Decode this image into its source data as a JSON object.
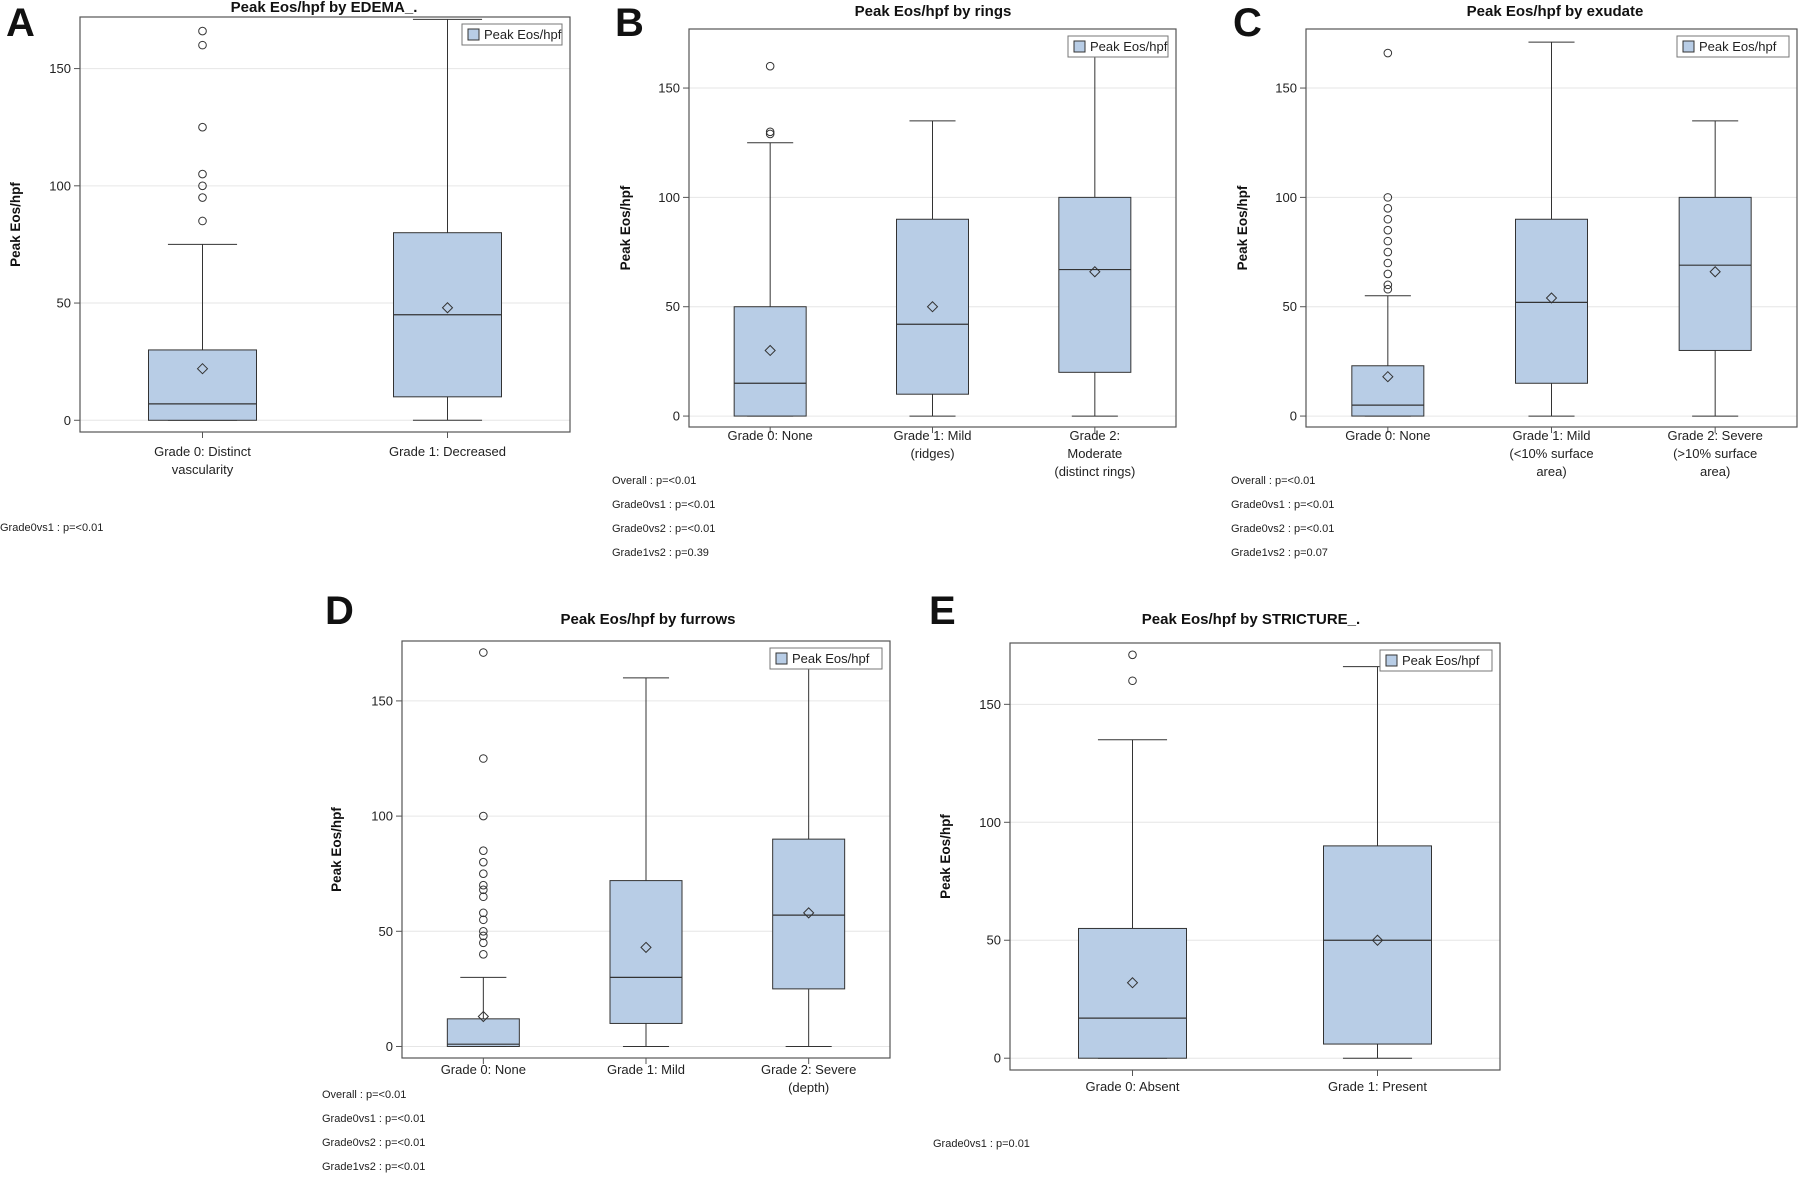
{
  "colors": {
    "box_fill": "#b8cde6",
    "box_stroke": "#333333",
    "grid": "#e6e6e6",
    "frame": "#555555"
  },
  "chart_data": [
    {
      "panel": "A",
      "type": "box",
      "title": "Peak Eos/hpf by EDEMA_.",
      "ylabel": "Peak Eos/hpf",
      "ylim": [
        -5,
        172
      ],
      "yticks": [
        0,
        50,
        100,
        150
      ],
      "grid": true,
      "legend": {
        "label": "Peak Eos/hpf",
        "placement": "top-right"
      },
      "categories": [
        [
          "Grade 0: Distinct",
          "vascularity"
        ],
        [
          "Grade 1: Decreased"
        ]
      ],
      "boxes": [
        {
          "q1": 0,
          "median": 7,
          "q3": 30,
          "mean": 22,
          "whisker_low": 0,
          "whisker_high": 75,
          "outliers": [
            85,
            95,
            100,
            105,
            125,
            160,
            166
          ]
        },
        {
          "q1": 10,
          "median": 45,
          "q3": 80,
          "mean": 48,
          "whisker_low": 0,
          "whisker_high": 171,
          "outliers": []
        }
      ],
      "pvalues": [
        "Grade0vs1 : p=<0.01"
      ]
    },
    {
      "panel": "B",
      "type": "box",
      "title": "Peak Eos/hpf by rings",
      "ylabel": "Peak Eos/hpf",
      "ylim": [
        -5,
        177
      ],
      "yticks": [
        0,
        50,
        100,
        150
      ],
      "grid": true,
      "legend": {
        "label": "Peak Eos/hpf",
        "placement": "top-right"
      },
      "categories": [
        [
          "Grade 0: None"
        ],
        [
          "Grade 1: Mild",
          "(ridges)"
        ],
        [
          "Grade 2:",
          "Moderate",
          "(distinct rings)"
        ]
      ],
      "boxes": [
        {
          "q1": 0,
          "median": 15,
          "q3": 50,
          "mean": 30,
          "whisker_low": 0,
          "whisker_high": 125,
          "outliers": [
            129,
            130,
            160
          ]
        },
        {
          "q1": 10,
          "median": 42,
          "q3": 90,
          "mean": 50,
          "whisker_low": 0,
          "whisker_high": 135,
          "outliers": []
        },
        {
          "q1": 20,
          "median": 67,
          "q3": 100,
          "mean": 66,
          "whisker_low": 0,
          "whisker_high": 171,
          "outliers": []
        }
      ],
      "pvalues": [
        "Overall : p=<0.01",
        "Grade0vs1 : p=<0.01",
        "Grade0vs2 : p=<0.01",
        "Grade1vs2 : p=0.39"
      ]
    },
    {
      "panel": "C",
      "type": "box",
      "title": "Peak Eos/hpf by exudate",
      "ylabel": "Peak Eos/hpf",
      "ylim": [
        -5,
        177
      ],
      "yticks": [
        0,
        50,
        100,
        150
      ],
      "grid": true,
      "legend": {
        "label": "Peak Eos/hpf",
        "placement": "top-right"
      },
      "categories": [
        [
          "Grade 0: None"
        ],
        [
          "Grade 1: Mild",
          "(<10% surface",
          "area)"
        ],
        [
          "Grade 2: Severe",
          "(>10% surface",
          "area)"
        ]
      ],
      "boxes": [
        {
          "q1": 0,
          "median": 5,
          "q3": 23,
          "mean": 18,
          "whisker_low": 0,
          "whisker_high": 55,
          "outliers": [
            58,
            60,
            65,
            70,
            75,
            80,
            85,
            90,
            95,
            100,
            166
          ]
        },
        {
          "q1": 15,
          "median": 52,
          "q3": 90,
          "mean": 54,
          "whisker_low": 0,
          "whisker_high": 171,
          "outliers": []
        },
        {
          "q1": 30,
          "median": 69,
          "q3": 100,
          "mean": 66,
          "whisker_low": 0,
          "whisker_high": 135,
          "outliers": []
        }
      ],
      "pvalues": [
        "Overall : p=<0.01",
        "Grade0vs1 : p=<0.01",
        "Grade0vs2 : p=<0.01",
        "Grade1vs2 : p=0.07"
      ]
    },
    {
      "panel": "D",
      "type": "box",
      "title": "Peak Eos/hpf by furrows",
      "ylabel": "Peak Eos/hpf",
      "ylim": [
        -5,
        176
      ],
      "yticks": [
        0,
        50,
        100,
        150
      ],
      "grid": true,
      "legend": {
        "label": "Peak Eos/hpf",
        "placement": "top-right"
      },
      "categories": [
        [
          "Grade 0: None"
        ],
        [
          "Grade 1: Mild"
        ],
        [
          "Grade 2: Severe",
          "(depth)"
        ]
      ],
      "boxes": [
        {
          "q1": 0,
          "median": 1,
          "q3": 12,
          "mean": 13,
          "whisker_low": 0,
          "whisker_high": 30,
          "outliers": [
            40,
            45,
            48,
            50,
            55,
            58,
            65,
            68,
            70,
            75,
            80,
            85,
            100,
            125,
            171
          ]
        },
        {
          "q1": 10,
          "median": 30,
          "q3": 72,
          "mean": 43,
          "whisker_low": 0,
          "whisker_high": 160,
          "outliers": []
        },
        {
          "q1": 25,
          "median": 57,
          "q3": 90,
          "mean": 58,
          "whisker_low": 0,
          "whisker_high": 166,
          "outliers": []
        }
      ],
      "pvalues": [
        "Overall : p=<0.01",
        "Grade0vs1 : p=<0.01",
        "Grade0vs2 : p=<0.01",
        "Grade1vs2 : p=<0.01"
      ]
    },
    {
      "panel": "E",
      "type": "box",
      "title": "Peak Eos/hpf by STRICTURE_.",
      "ylabel": "Peak Eos/hpf",
      "ylim": [
        -5,
        176
      ],
      "yticks": [
        0,
        50,
        100,
        150
      ],
      "grid": true,
      "legend": {
        "label": "Peak Eos/hpf",
        "placement": "top-right"
      },
      "categories": [
        [
          "Grade 0: Absent"
        ],
        [
          "Grade 1: Present"
        ]
      ],
      "boxes": [
        {
          "q1": 0,
          "median": 17,
          "q3": 55,
          "mean": 32,
          "whisker_low": 0,
          "whisker_high": 135,
          "outliers": [
            160,
            171
          ]
        },
        {
          "q1": 6,
          "median": 50,
          "q3": 90,
          "mean": 50,
          "whisker_low": 0,
          "whisker_high": 166,
          "outliers": []
        }
      ],
      "pvalues": [
        "Grade0vs1 : p=0.01"
      ]
    }
  ]
}
